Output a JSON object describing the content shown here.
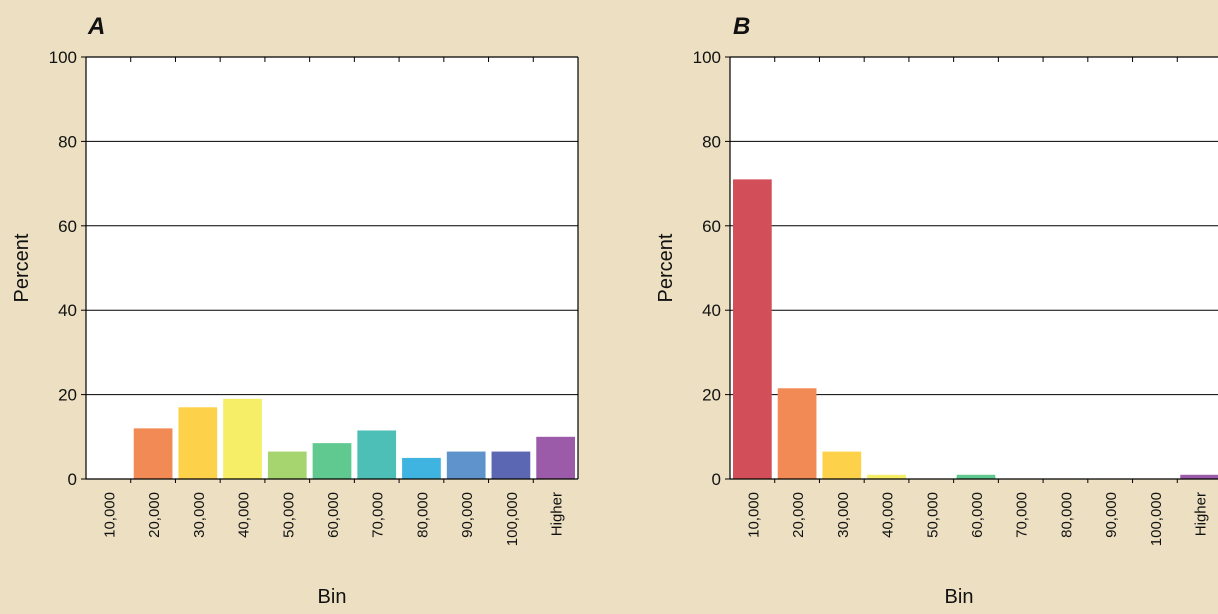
{
  "chart_data": [
    {
      "type": "bar",
      "panel_label": "A",
      "xlabel": "Bin",
      "ylabel": "Percent",
      "ylim": [
        0,
        100
      ],
      "yticks": [
        0,
        20,
        40,
        60,
        80,
        100
      ],
      "grid": true,
      "categories": [
        "10,000",
        "20,000",
        "30,000",
        "40,000",
        "50,000",
        "60,000",
        "70,000",
        "80,000",
        "90,000",
        "100,000",
        "Higher"
      ],
      "values": [
        0,
        12,
        17,
        19,
        6.5,
        8.5,
        11.5,
        5,
        6.5,
        6.5,
        10
      ],
      "colors": [
        "#d24f5a",
        "#f28a55",
        "#fdd24a",
        "#f5ee66",
        "#a6d46f",
        "#5fc98f",
        "#4dbfb6",
        "#3fb4e0",
        "#5f93cc",
        "#5b67b3",
        "#9b5ba8"
      ]
    },
    {
      "type": "bar",
      "panel_label": "B",
      "xlabel": "Bin",
      "ylabel": "Percent",
      "ylim": [
        0,
        100
      ],
      "yticks": [
        0,
        20,
        40,
        60,
        80,
        100
      ],
      "grid": true,
      "categories": [
        "10,000",
        "20,000",
        "30,000",
        "40,000",
        "50,000",
        "60,000",
        "70,000",
        "80,000",
        "90,000",
        "100,000",
        "Higher"
      ],
      "values": [
        71,
        21.5,
        6.5,
        1,
        0,
        1,
        0,
        0,
        0,
        0,
        1
      ],
      "colors": [
        "#d24f5a",
        "#f28a55",
        "#fdd24a",
        "#f5ee66",
        "#a6d46f",
        "#5fc98f",
        "#4dbfb6",
        "#3fb4e0",
        "#5f93cc",
        "#5b67b3",
        "#9b5ba8"
      ]
    }
  ]
}
